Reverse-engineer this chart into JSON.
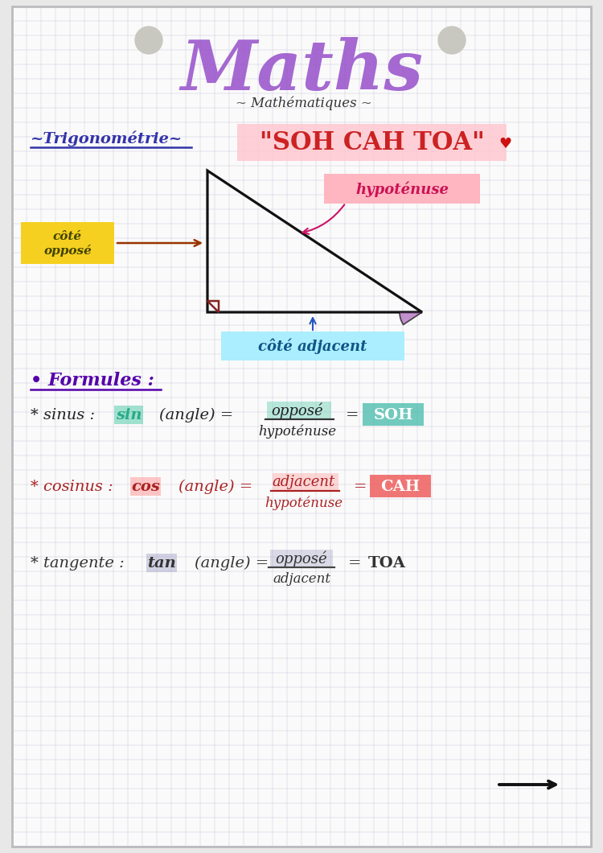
{
  "bg_color": "#f5f5f0",
  "grid_color": "#c0c0d8",
  "title_main": "Maths",
  "title_sub": "~ Mathématiques ~",
  "title_main_color": "#9955cc",
  "title_sub_color": "#333333",
  "trig_label": "~Trigonométrie~",
  "trig_color": "#3333aa",
  "soh_cah_toa_text": "\"SOH CAH TOA\"",
  "soh_cah_toa_color": "#cc2222",
  "soh_cah_toa_bg": "#ffb6c1",
  "triangle_color": "#111111",
  "right_angle_color": "#882222",
  "angle_fill_color": "#b070c0",
  "oppose_label": "côté\nopposé",
  "oppose_bg": "#f5d020",
  "oppose_arrow_color": "#993300",
  "hypo_label": "hypoténuse",
  "hypo_bg": "#ffb6c1",
  "hypo_arrow_color": "#cc1166",
  "adjacent_label": "côté adjacent",
  "adjacent_bg": "#aaeeff",
  "adjacent_arrow_color": "#2255bb",
  "formules_color": "#5500aa",
  "sin_text_color": "#111111",
  "sin_highlight_color": "#2aaa88",
  "sin_bg_color": "#55ccaa",
  "SOH_bg": "#44bbaa",
  "cos_text_color": "#aa2222",
  "cos_highlight_color": "#cc4444",
  "CAH_bg": "#ee5555",
  "tan_text_color": "#333333",
  "tan_highlight_color": "#888899",
  "TOA_color": "#333333",
  "arrow_color": "#111111"
}
